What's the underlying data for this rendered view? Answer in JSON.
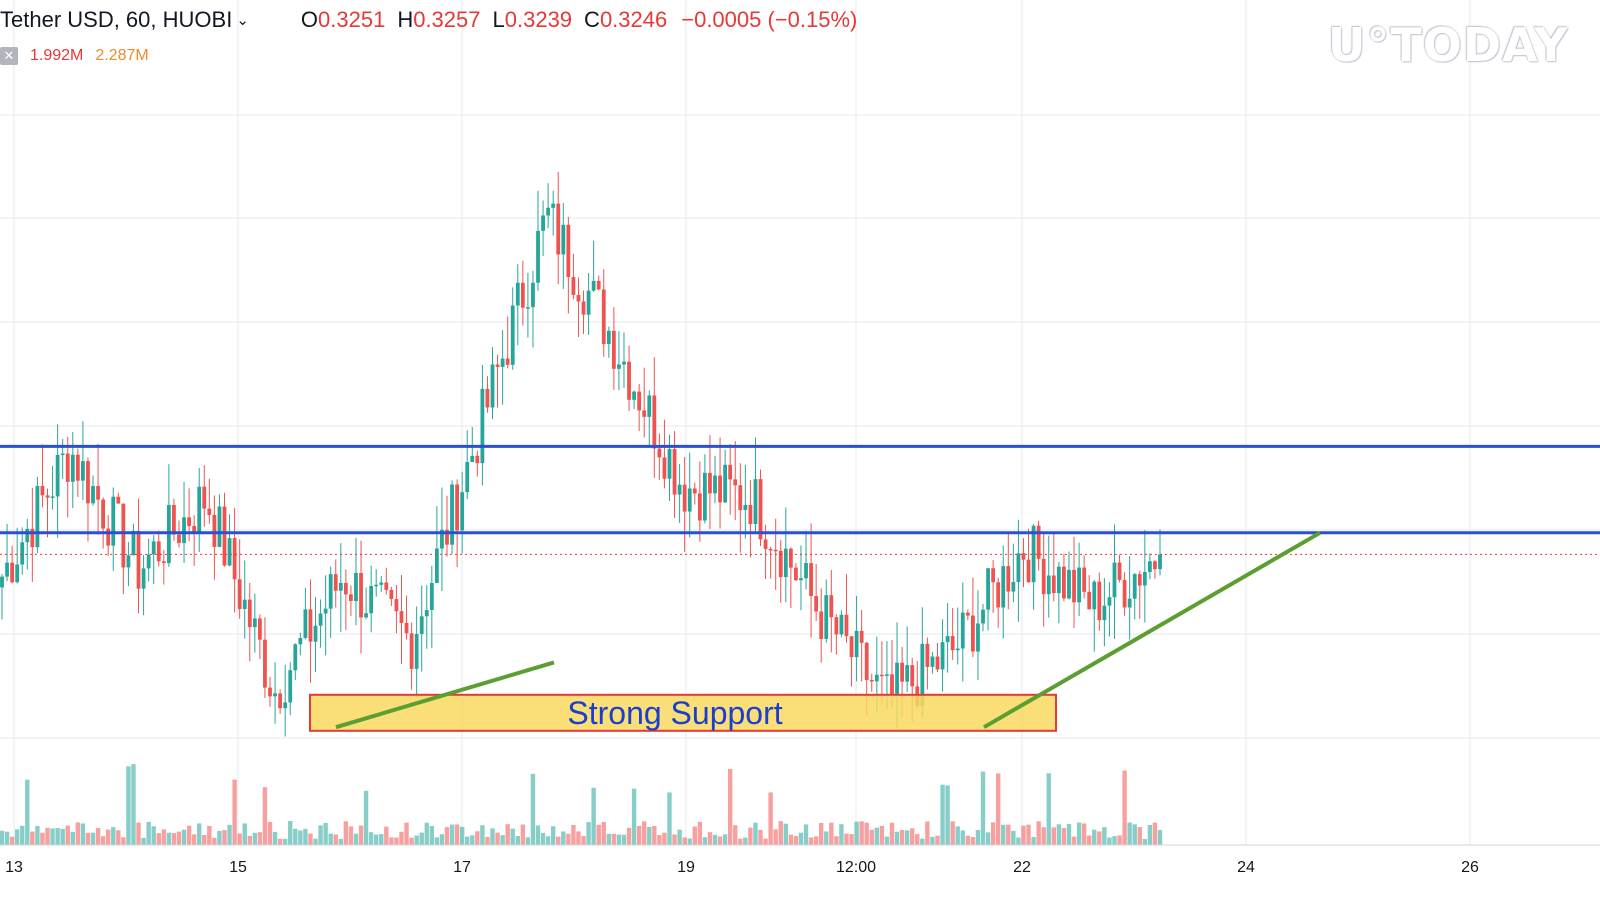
{
  "header": {
    "symbol": "Tether USD, 60, HUOBI",
    "chevron_icon": "chevron-down-icon",
    "open_label": "O",
    "open_value": "0.3251",
    "high_label": "H",
    "high_value": "0.3257",
    "low_label": "L",
    "low_value": "0.3239",
    "close_label": "C",
    "close_value": "0.3246",
    "change": "−0.0005 (−0.15%)"
  },
  "volume_legend": {
    "toggle_icon": "close-box-icon",
    "value_1": "1.992M",
    "value_2": "2.287M"
  },
  "watermark": "U°TODAY",
  "colors": {
    "up": "#26a69a",
    "down": "#ef5350",
    "resistance_line": "#2a4fd1",
    "trend_line": "#5c9e2f",
    "support_fill": "#f9d860",
    "support_border": "#e53935",
    "support_text": "#1a3fcf",
    "last_price_line": "#e53935",
    "grid": "#e6eaf0"
  },
  "chart_data": {
    "type": "candlestick",
    "symbol": "Tether USD",
    "interval": "60",
    "exchange": "HUOBI",
    "x_ticks": [
      "13",
      "15",
      "17",
      "19",
      "12:00",
      "22",
      "24",
      "26"
    ],
    "y_range": [
      0.315,
      0.34
    ],
    "last_price": 0.3246,
    "horizontal_levels": [
      0.3276,
      0.3252
    ],
    "support_zone": {
      "label": "Strong Support",
      "from": 0.3197,
      "to": 0.3207
    },
    "trend_lines": [
      {
        "from": [
          "15",
          0.3198
        ],
        "to": [
          "17",
          0.3216
        ]
      },
      {
        "from": [
          "12:00",
          0.3198
        ],
        "to": [
          "24",
          0.3252
        ]
      }
    ],
    "series_anchors_close": [
      [
        "13",
        0.324
      ],
      [
        "13",
        0.3275
      ],
      [
        "15",
        0.3242
      ],
      [
        "15",
        0.3262
      ],
      [
        "15",
        0.3208
      ],
      [
        "17",
        0.324
      ],
      [
        "17",
        0.3222
      ],
      [
        "17",
        0.328
      ],
      [
        "19",
        0.334
      ],
      [
        "19",
        0.3305
      ],
      [
        "19",
        0.3265
      ],
      [
        "12:00",
        0.3262
      ],
      [
        "12:00",
        0.323
      ],
      [
        "12:00",
        0.3205
      ],
      [
        "22",
        0.322
      ],
      [
        "22",
        0.3248
      ],
      [
        "22",
        0.3232
      ],
      [
        "22",
        0.3246
      ]
    ],
    "grid": true,
    "show_volume": true
  }
}
